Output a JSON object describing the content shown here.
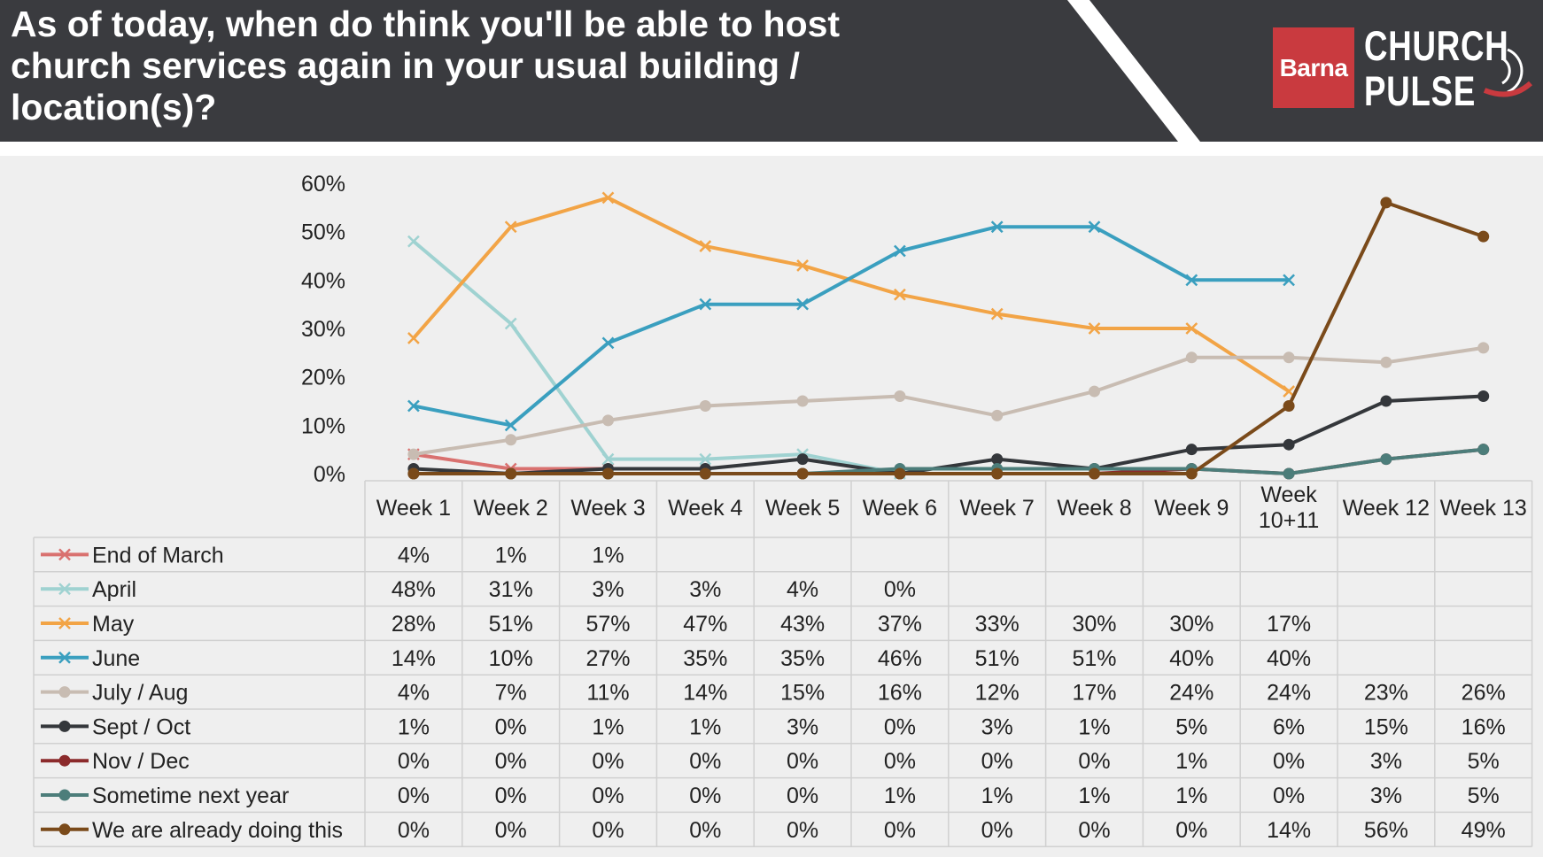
{
  "header": {
    "title": "As of today, when do think you'll be able to host church services again in your usual building / location(s)?",
    "logo_barna": "Barna",
    "logo_line1": "CHURCH",
    "logo_line2": "PULSE",
    "bg_color": "#3a3b3f",
    "brand_red": "#c93a3f"
  },
  "chart_data": {
    "type": "line",
    "x": [
      "Week 1",
      "Week 2",
      "Week 3",
      "Week 4",
      "Week 5",
      "Week 6",
      "Week 7",
      "Week 8",
      "Week 9",
      "Week 10+11",
      "Week 12",
      "Week 13"
    ],
    "ylim": [
      0,
      60
    ],
    "yticks": [
      "0%",
      "10%",
      "20%",
      "30%",
      "40%",
      "50%",
      "60%"
    ],
    "legend_position": "data-table-left",
    "grid": false,
    "series": [
      {
        "name": "End of March",
        "color": "#d9716f",
        "marker": "x",
        "values": [
          4,
          1,
          1,
          null,
          null,
          null,
          null,
          null,
          null,
          null,
          null,
          null
        ]
      },
      {
        "name": "April",
        "color": "#9fd2d1",
        "marker": "x",
        "values": [
          48,
          31,
          3,
          3,
          4,
          0,
          null,
          null,
          null,
          null,
          null,
          null
        ]
      },
      {
        "name": "May",
        "color": "#f2a446",
        "marker": "x",
        "values": [
          28,
          51,
          57,
          47,
          43,
          37,
          33,
          30,
          30,
          17,
          null,
          null
        ]
      },
      {
        "name": "June",
        "color": "#3a9fbf",
        "marker": "x",
        "values": [
          14,
          10,
          27,
          35,
          35,
          46,
          51,
          51,
          40,
          40,
          null,
          null
        ]
      },
      {
        "name": "July / Aug",
        "color": "#c8bcb2",
        "marker": "circle",
        "values": [
          4,
          7,
          11,
          14,
          15,
          16,
          12,
          17,
          24,
          24,
          23,
          26
        ]
      },
      {
        "name": "Sept / Oct",
        "color": "#34373b",
        "marker": "circle",
        "values": [
          1,
          0,
          1,
          1,
          3,
          0,
          3,
          1,
          5,
          6,
          15,
          16
        ]
      },
      {
        "name": "Nov / Dec",
        "color": "#8b2a2b",
        "marker": "circle",
        "values": [
          0,
          0,
          0,
          0,
          0,
          0,
          0,
          0,
          1,
          0,
          3,
          5
        ]
      },
      {
        "name": "Sometime next year",
        "color": "#4c7d7a",
        "marker": "circle",
        "values": [
          0,
          0,
          0,
          0,
          0,
          1,
          1,
          1,
          1,
          0,
          3,
          5
        ]
      },
      {
        "name": "We are already doing this",
        "color": "#7a4a1a",
        "marker": "circle",
        "values": [
          0,
          0,
          0,
          0,
          0,
          0,
          0,
          0,
          0,
          14,
          56,
          49
        ]
      }
    ]
  }
}
